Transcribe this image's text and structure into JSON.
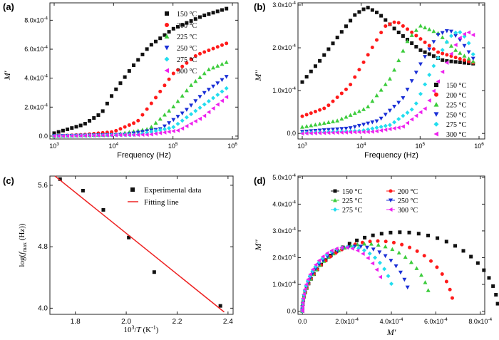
{
  "colors": {
    "150": "#111111",
    "200": "#ff1a1a",
    "225": "#3ccc3c",
    "250": "#1a2fd6",
    "275": "#22ddee",
    "300": "#ee22ee",
    "fit": "#ee2222"
  },
  "chart_data": [
    {
      "panel": "(a)",
      "type": "scatter",
      "xscale": "log",
      "xlabel": "Frequency (Hz)",
      "ylabel": "M'",
      "xlim": [
        1000,
        1000000
      ],
      "ylim": [
        -2e-05,
        0.00092
      ],
      "xticks": [
        {
          "v": 1000,
          "b": "10",
          "e": "3"
        },
        {
          "v": 10000,
          "b": "10",
          "e": "4"
        },
        {
          "v": 100000,
          "b": "10",
          "e": "5"
        },
        {
          "v": 1000000,
          "b": "10",
          "e": "6"
        }
      ],
      "yticks": [
        {
          "v": 0,
          "b": "0.0",
          "e": ""
        },
        {
          "v": 0.0002,
          "b": "2.0x10",
          "e": "-4"
        },
        {
          "v": 0.0004,
          "b": "4.0x10",
          "e": "-4"
        },
        {
          "v": 0.0006,
          "b": "6.0x10",
          "e": "-4"
        },
        {
          "v": 0.0008,
          "b": "8.0x10",
          "e": "-4"
        }
      ],
      "legend": "top-right",
      "series": [
        {
          "name": "150 °C",
          "temp": "150",
          "marker": "square",
          "x_log_range": [
            3.0,
            5.9
          ],
          "n": 40,
          "points": [
            [
              3.0,
              2e-05
            ],
            [
              3.5,
              8e-05
            ],
            [
              3.8,
              0.00016
            ],
            [
              4.0,
              0.0003
            ],
            [
              4.3,
              0.00047
            ],
            [
              4.6,
              0.00062
            ],
            [
              5.0,
              0.00074
            ],
            [
              5.5,
              0.00083
            ],
            [
              5.9,
              0.00088
            ]
          ]
        },
        {
          "name": "200 °C",
          "temp": "200",
          "marker": "circle",
          "x_log_range": [
            3.0,
            5.9
          ],
          "n": 40,
          "points": [
            [
              3.0,
              0.0
            ],
            [
              3.5,
              1e-05
            ],
            [
              4.0,
              3e-05
            ],
            [
              4.4,
              0.0001
            ],
            [
              4.7,
              0.00026
            ],
            [
              5.0,
              0.00043
            ],
            [
              5.4,
              0.00056
            ],
            [
              5.9,
              0.00064
            ]
          ]
        },
        {
          "name": "225 °C",
          "temp": "225",
          "marker": "triangle-up",
          "x_log_range": [
            3.0,
            5.9
          ],
          "n": 40,
          "points": [
            [
              3.0,
              0.0
            ],
            [
              4.0,
              1e-05
            ],
            [
              4.6,
              5e-05
            ],
            [
              5.0,
              0.0002
            ],
            [
              5.3,
              0.00035
            ],
            [
              5.6,
              0.00046
            ],
            [
              5.9,
              0.00051
            ]
          ]
        },
        {
          "name": "250 °C",
          "temp": "250",
          "marker": "triangle-down",
          "x_log_range": [
            3.0,
            5.9
          ],
          "n": 40,
          "points": [
            [
              3.0,
              0.0
            ],
            [
              4.2,
              1e-05
            ],
            [
              4.8,
              5e-05
            ],
            [
              5.2,
              0.00017
            ],
            [
              5.5,
              0.00029
            ],
            [
              5.9,
              0.00041
            ]
          ]
        },
        {
          "name": "275 °C",
          "temp": "275",
          "marker": "diamond",
          "x_log_range": [
            3.0,
            5.9
          ],
          "n": 40,
          "points": [
            [
              3.0,
              0.0
            ],
            [
              4.4,
              1e-05
            ],
            [
              5.0,
              6e-05
            ],
            [
              5.4,
              0.00018
            ],
            [
              5.7,
              0.00027
            ],
            [
              5.9,
              0.00033
            ]
          ]
        },
        {
          "name": "300 °C",
          "temp": "300",
          "marker": "triangle-left",
          "x_log_range": [
            3.0,
            5.9
          ],
          "n": 40,
          "points": [
            [
              3.0,
              0.0
            ],
            [
              4.6,
              1e-05
            ],
            [
              5.1,
              4e-05
            ],
            [
              5.5,
              0.00013
            ],
            [
              5.9,
              0.00027
            ]
          ]
        }
      ]
    },
    {
      "panel": "(b)",
      "type": "scatter",
      "xscale": "log",
      "xlabel": "Frequency (Hz)",
      "ylabel": "M''",
      "xlim": [
        1000,
        1000000
      ],
      "ylim": [
        -1.3e-05,
        0.000305
      ],
      "xticks": [
        {
          "v": 1000,
          "b": "10",
          "e": "3"
        },
        {
          "v": 10000,
          "b": "10",
          "e": "4"
        },
        {
          "v": 100000,
          "b": "10",
          "e": "5"
        },
        {
          "v": 1000000,
          "b": "10",
          "e": "6"
        }
      ],
      "yticks": [
        {
          "v": 0,
          "b": "0.0",
          "e": ""
        },
        {
          "v": 0.0001,
          "b": "1.0x10",
          "e": "-4"
        },
        {
          "v": 0.0002,
          "b": "2.0x10",
          "e": "-4"
        },
        {
          "v": 0.0003,
          "b": "3.0x10",
          "e": "-4"
        }
      ],
      "legend": "right",
      "series": [
        {
          "name": "150 °C",
          "temp": "150",
          "marker": "square",
          "x_log_range": [
            3.0,
            5.9
          ],
          "n": 40,
          "points": [
            [
              3.0,
              0.00012
            ],
            [
              3.3,
              0.00017
            ],
            [
              3.6,
              0.000225
            ],
            [
              3.9,
              0.000278
            ],
            [
              4.1,
              0.000295
            ],
            [
              4.3,
              0.00028
            ],
            [
              4.6,
              0.00024
            ],
            [
              5.0,
              0.000195
            ],
            [
              5.4,
              0.00017
            ],
            [
              5.9,
              0.000163
            ]
          ]
        },
        {
          "name": "200 °C",
          "temp": "200",
          "marker": "circle",
          "x_log_range": [
            3.0,
            5.9
          ],
          "n": 40,
          "points": [
            [
              3.0,
              4e-05
            ],
            [
              3.4,
              6e-05
            ],
            [
              3.8,
              0.00011
            ],
            [
              4.1,
              0.00018
            ],
            [
              4.4,
              0.00025
            ],
            [
              4.6,
              0.000262
            ],
            [
              4.9,
              0.000232
            ],
            [
              5.3,
              0.00019
            ],
            [
              5.9,
              0.000165
            ]
          ]
        },
        {
          "name": "225 °C",
          "temp": "225",
          "marker": "triangle-up",
          "x_log_range": [
            3.0,
            5.9
          ],
          "n": 40,
          "points": [
            [
              3.0,
              1.5e-05
            ],
            [
              3.6,
              3e-05
            ],
            [
              4.1,
              6e-05
            ],
            [
              4.5,
              0.00013
            ],
            [
              4.8,
              0.00022
            ],
            [
              5.0,
              0.000252
            ],
            [
              5.3,
              0.000235
            ],
            [
              5.6,
              0.000195
            ],
            [
              5.9,
              0.000168
            ]
          ]
        },
        {
          "name": "250 °C",
          "temp": "250",
          "marker": "triangle-down",
          "x_log_range": [
            3.0,
            5.9
          ],
          "n": 40,
          "points": [
            [
              3.0,
              4e-06
            ],
            [
              3.8,
              1.2e-05
            ],
            [
              4.3,
              3e-05
            ],
            [
              4.7,
              8e-05
            ],
            [
              5.0,
              0.00016
            ],
            [
              5.3,
              0.00023
            ],
            [
              5.5,
              0.000242
            ],
            [
              5.7,
              0.000215
            ],
            [
              5.9,
              0.000175
            ]
          ]
        },
        {
          "name": "275 °C",
          "temp": "275",
          "marker": "diamond",
          "x_log_range": [
            3.0,
            5.9
          ],
          "n": 40,
          "points": [
            [
              3.0,
              1e-06
            ],
            [
              4.0,
              6e-06
            ],
            [
              4.5,
              2e-05
            ],
            [
              4.9,
              6e-05
            ],
            [
              5.2,
              0.00015
            ],
            [
              5.5,
              0.000225
            ],
            [
              5.65,
              0.00024
            ],
            [
              5.8,
              0.00022
            ],
            [
              5.9,
              0.000185
            ]
          ]
        },
        {
          "name": "300 °C",
          "temp": "300",
          "marker": "triangle-left",
          "x_log_range": [
            3.0,
            5.9
          ],
          "n": 40,
          "points": [
            [
              3.0,
              0.0
            ],
            [
              4.2,
              4e-06
            ],
            [
              4.7,
              1.5e-05
            ],
            [
              5.1,
              6e-05
            ],
            [
              5.4,
              0.00015
            ],
            [
              5.65,
              0.00022
            ],
            [
              5.8,
              0.000238
            ],
            [
              5.9,
              0.00023
            ]
          ]
        }
      ]
    },
    {
      "panel": "(c)",
      "type": "scatter",
      "xlabel_parts": [
        "10",
        "3",
        "/",
        "T",
        " (K",
        "-1",
        ")"
      ],
      "ylabel_parts": [
        "log(",
        "f",
        "max",
        " (Hz))"
      ],
      "xlim": [
        1.7,
        2.42
      ],
      "ylim": [
        3.92,
        5.72
      ],
      "xticks": [
        {
          "v": 1.8,
          "b": "1.8",
          "e": ""
        },
        {
          "v": 2.0,
          "b": "2.0",
          "e": ""
        },
        {
          "v": 2.2,
          "b": "2.2",
          "e": ""
        },
        {
          "v": 2.4,
          "b": "2.4",
          "e": ""
        }
      ],
      "yticks": [
        {
          "v": 4.0,
          "b": "4.0",
          "e": ""
        },
        {
          "v": 4.8,
          "b": "4.8",
          "e": ""
        },
        {
          "v": 5.6,
          "b": "5.6",
          "e": ""
        }
      ],
      "legend": "top-right",
      "legend_entries": [
        "Experimental data",
        "Fitting line"
      ],
      "series": [
        {
          "name": "Experimental data",
          "temp": "150",
          "marker": "square",
          "x": [
            1.74,
            1.83,
            1.91,
            2.01,
            2.11,
            2.37
          ],
          "y": [
            5.68,
            5.53,
            5.28,
            4.92,
            4.47,
            4.03
          ]
        },
        {
          "name": "Fitting line",
          "temp": "fit",
          "line": true,
          "x": [
            1.72,
            2.385
          ],
          "y": [
            5.72,
            3.95
          ]
        }
      ]
    },
    {
      "panel": "(d)",
      "type": "scatter",
      "xlabel": "M'",
      "ylabel": "M''",
      "xlim": [
        -2e-05,
        0.00082
      ],
      "ylim": [
        -1.2e-05,
        0.000505
      ],
      "xticks": [
        {
          "v": 0,
          "b": "0.0",
          "e": ""
        },
        {
          "v": 0.0002,
          "b": "2.0x10",
          "e": "-4"
        },
        {
          "v": 0.0004,
          "b": "4.0x10",
          "e": "-4"
        },
        {
          "v": 0.0006,
          "b": "6.0x10",
          "e": "-4"
        },
        {
          "v": 0.0008,
          "b": "8.0x10",
          "e": "-4"
        }
      ],
      "yticks": [
        {
          "v": 0,
          "b": "0.0",
          "e": ""
        },
        {
          "v": 0.0001,
          "b": "1.0x10",
          "e": "-4"
        },
        {
          "v": 0.0002,
          "b": "2.0x10",
          "e": "-4"
        },
        {
          "v": 0.0003,
          "b": "3.0x10",
          "e": "-4"
        },
        {
          "v": 0.0004,
          "b": "4.0x10",
          "e": "-4"
        },
        {
          "v": 0.0005,
          "b": "5.0x10",
          "e": "-4"
        }
      ],
      "legend": "top",
      "series": [
        {
          "name": "150 °C",
          "temp": "150",
          "marker": "square",
          "arc": {
            "end": 0.00088,
            "peak": 0.000295,
            "cut": 0.97,
            "n": 38
          }
        },
        {
          "name": "200 °C",
          "temp": "200",
          "marker": "circle",
          "arc": {
            "end": 0.00068,
            "peak": 0.000262,
            "cut": 0.94,
            "n": 34
          }
        },
        {
          "name": "225 °C",
          "temp": "225",
          "marker": "triangle-up",
          "arc": {
            "end": 0.00058,
            "peak": 0.000252,
            "cut": 0.9,
            "n": 32
          }
        },
        {
          "name": "250 °C",
          "temp": "250",
          "marker": "triangle-down",
          "arc": {
            "end": 0.00049,
            "peak": 0.000242,
            "cut": 0.88,
            "n": 30
          }
        },
        {
          "name": "275 °C",
          "temp": "275",
          "marker": "diamond",
          "arc": {
            "end": 0.00042,
            "peak": 0.00024,
            "cut": 0.86,
            "n": 28
          }
        },
        {
          "name": "300 °C",
          "temp": "300",
          "marker": "triangle-left",
          "arc": {
            "end": 0.00038,
            "peak": 0.000238,
            "cut": 0.82,
            "n": 26
          }
        }
      ]
    }
  ]
}
